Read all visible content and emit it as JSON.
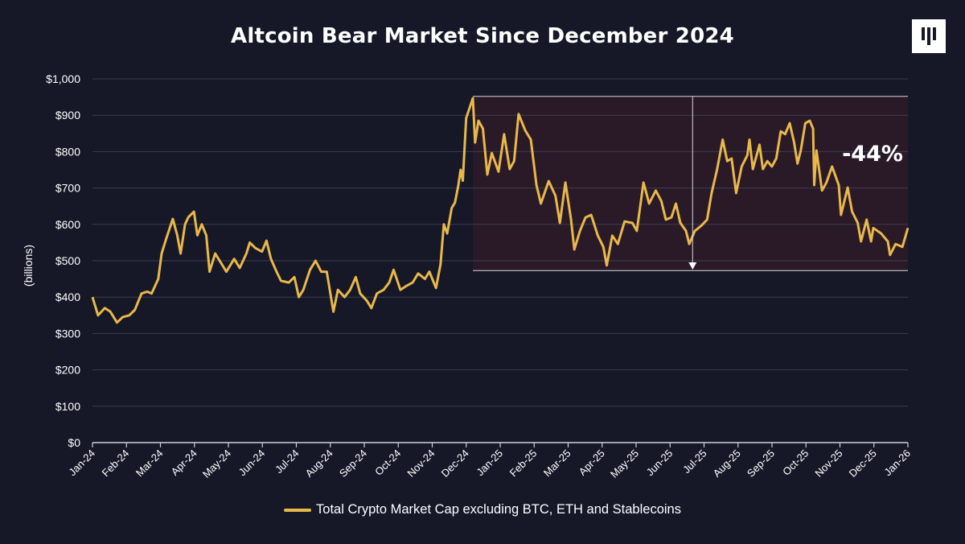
{
  "chart_data": {
    "type": "line",
    "title": "Altcoin Bear Market Since December 2024",
    "ylabel": "(billions)",
    "xlabel": "",
    "ylim": [
      0,
      1000
    ],
    "xlim": [
      "2024-01-01",
      "2026-01-01"
    ],
    "grid": true,
    "legend_position": "bottom",
    "y_ticks": [
      0,
      100,
      200,
      300,
      400,
      500,
      600,
      700,
      800,
      900,
      1000
    ],
    "y_tick_labels": [
      "$0",
      "$100",
      "$200",
      "$300",
      "$400",
      "$500",
      "$600",
      "$700",
      "$800",
      "$900",
      "$1,000"
    ],
    "x_tick_labels": [
      "Jan-24",
      "Feb-24",
      "Mar-24",
      "Apr-24",
      "May-24",
      "Jun-24",
      "Jul-24",
      "Aug-24",
      "Sep-24",
      "Oct-24",
      "Nov-24",
      "Dec-24",
      "Jan-25",
      "Feb-25",
      "Mar-25",
      "Apr-25",
      "May-25",
      "Jun-25",
      "Jul-25",
      "Aug-25",
      "Sep-25",
      "Oct-25",
      "Nov-25",
      "Dec-25",
      "Jan-26"
    ],
    "series": [
      {
        "name": "Total Crypto Market Cap excluding BTC, ETH and Stablecoins",
        "color": "#e8b84a",
        "x": [
          "2024-01-01",
          "2024-01-06",
          "2024-01-12",
          "2024-01-17",
          "2024-01-23",
          "2024-01-28",
          "2024-02-03",
          "2024-02-08",
          "2024-02-14",
          "2024-02-19",
          "2024-02-23",
          "2024-02-29",
          "2024-03-03",
          "2024-03-07",
          "2024-03-13",
          "2024-03-17",
          "2024-03-20",
          "2024-03-24",
          "2024-03-27",
          "2024-04-01",
          "2024-04-04",
          "2024-04-08",
          "2024-04-12",
          "2024-04-15",
          "2024-04-20",
          "2024-04-26",
          "2024-04-30",
          "2024-05-07",
          "2024-05-12",
          "2024-05-18",
          "2024-05-21",
          "2024-05-26",
          "2024-06-01",
          "2024-06-05",
          "2024-06-09",
          "2024-06-14",
          "2024-06-18",
          "2024-06-25",
          "2024-06-30",
          "2024-07-04",
          "2024-07-08",
          "2024-07-14",
          "2024-07-19",
          "2024-07-24",
          "2024-07-29",
          "2024-08-04",
          "2024-08-08",
          "2024-08-14",
          "2024-08-19",
          "2024-08-24",
          "2024-08-28",
          "2024-09-03",
          "2024-09-07",
          "2024-09-12",
          "2024-09-18",
          "2024-09-23",
          "2024-09-27",
          "2024-10-03",
          "2024-10-08",
          "2024-10-14",
          "2024-10-19",
          "2024-10-25",
          "2024-10-29",
          "2024-11-04",
          "2024-11-08",
          "2024-11-11",
          "2024-11-14",
          "2024-11-18",
          "2024-11-21",
          "2024-11-24",
          "2024-11-26",
          "2024-11-28",
          "2024-12-01",
          "2024-12-07",
          "2024-12-09",
          "2024-12-12",
          "2024-12-16",
          "2024-12-20",
          "2024-12-24",
          "2024-12-30",
          "2025-01-04",
          "2025-01-09",
          "2025-01-13",
          "2025-01-17",
          "2025-01-23",
          "2025-01-28",
          "2025-02-02",
          "2025-02-06",
          "2025-02-13",
          "2025-02-19",
          "2025-02-23",
          "2025-02-28",
          "2025-03-05",
          "2025-03-08",
          "2025-03-13",
          "2025-03-18",
          "2025-03-23",
          "2025-03-29",
          "2025-04-03",
          "2025-04-06",
          "2025-04-11",
          "2025-04-16",
          "2025-04-22",
          "2025-04-29",
          "2025-05-03",
          "2025-05-09",
          "2025-05-14",
          "2025-05-20",
          "2025-05-25",
          "2025-05-29",
          "2025-06-03",
          "2025-06-07",
          "2025-06-11",
          "2025-06-16",
          "2025-06-19",
          "2025-06-24",
          "2025-06-30",
          "2025-07-05",
          "2025-07-09",
          "2025-07-14",
          "2025-07-19",
          "2025-07-23",
          "2025-07-27",
          "2025-07-31",
          "2025-08-05",
          "2025-08-10",
          "2025-08-12",
          "2025-08-15",
          "2025-08-21",
          "2025-08-24",
          "2025-08-28",
          "2025-09-01",
          "2025-09-05",
          "2025-09-09",
          "2025-09-13",
          "2025-09-17",
          "2025-09-21",
          "2025-09-24",
          "2025-09-27",
          "2025-10-01",
          "2025-10-05",
          "2025-10-08",
          "2025-10-09",
          "2025-10-11",
          "2025-10-16",
          "2025-10-20",
          "2025-10-25",
          "2025-10-31",
          "2025-11-02",
          "2025-11-08",
          "2025-11-12",
          "2025-11-17",
          "2025-11-20",
          "2025-11-25",
          "2025-11-29",
          "2025-12-01",
          "2025-12-08",
          "2025-12-14",
          "2025-12-16",
          "2025-12-21",
          "2025-12-27",
          "2026-01-01"
        ],
        "values": [
          400,
          350,
          370,
          360,
          330,
          345,
          350,
          365,
          410,
          415,
          410,
          450,
          520,
          560,
          615,
          570,
          520,
          600,
          620,
          635,
          570,
          600,
          570,
          470,
          520,
          490,
          470,
          505,
          480,
          520,
          550,
          535,
          525,
          555,
          505,
          470,
          445,
          440,
          455,
          400,
          420,
          475,
          500,
          470,
          470,
          360,
          420,
          400,
          420,
          455,
          410,
          390,
          370,
          410,
          420,
          440,
          475,
          420,
          430,
          440,
          465,
          450,
          470,
          425,
          490,
          600,
          575,
          645,
          660,
          708,
          750,
          720,
          892,
          947,
          825,
          885,
          863,
          737,
          796,
          745,
          848,
          752,
          774,
          903,
          858,
          833,
          708,
          657,
          719,
          679,
          604,
          715,
          613,
          531,
          582,
          619,
          626,
          569,
          538,
          487,
          569,
          546,
          608,
          604,
          582,
          715,
          657,
          693,
          664,
          613,
          619,
          657,
          604,
          582,
          546,
          582,
          597,
          613,
          686,
          752,
          833,
          774,
          781,
          686,
          759,
          790,
          833,
          752,
          819,
          752,
          774,
          759,
          781,
          856,
          848,
          878,
          825,
          767,
          803,
          878,
          885,
          863,
          708,
          803,
          693,
          715,
          759,
          708,
          626,
          701,
          635,
          604,
          553,
          613,
          553,
          590,
          575,
          553,
          516,
          546,
          538,
          590
        ]
      }
    ],
    "annotations": {
      "drawdown_box": {
        "x_start": "2024-12-07",
        "x_end": "2026-01-01",
        "y_top": 952,
        "y_bottom": 473,
        "fill": "#2a1a28"
      },
      "arrow": {
        "x": "2025-06-22",
        "from": 952,
        "to": 478
      },
      "label": "-44%"
    }
  },
  "legend": {
    "label": "Total Crypto Market Cap excluding BTC, ETH and Stablecoins"
  },
  "logo": {
    "name": "logo-bars-icon"
  }
}
